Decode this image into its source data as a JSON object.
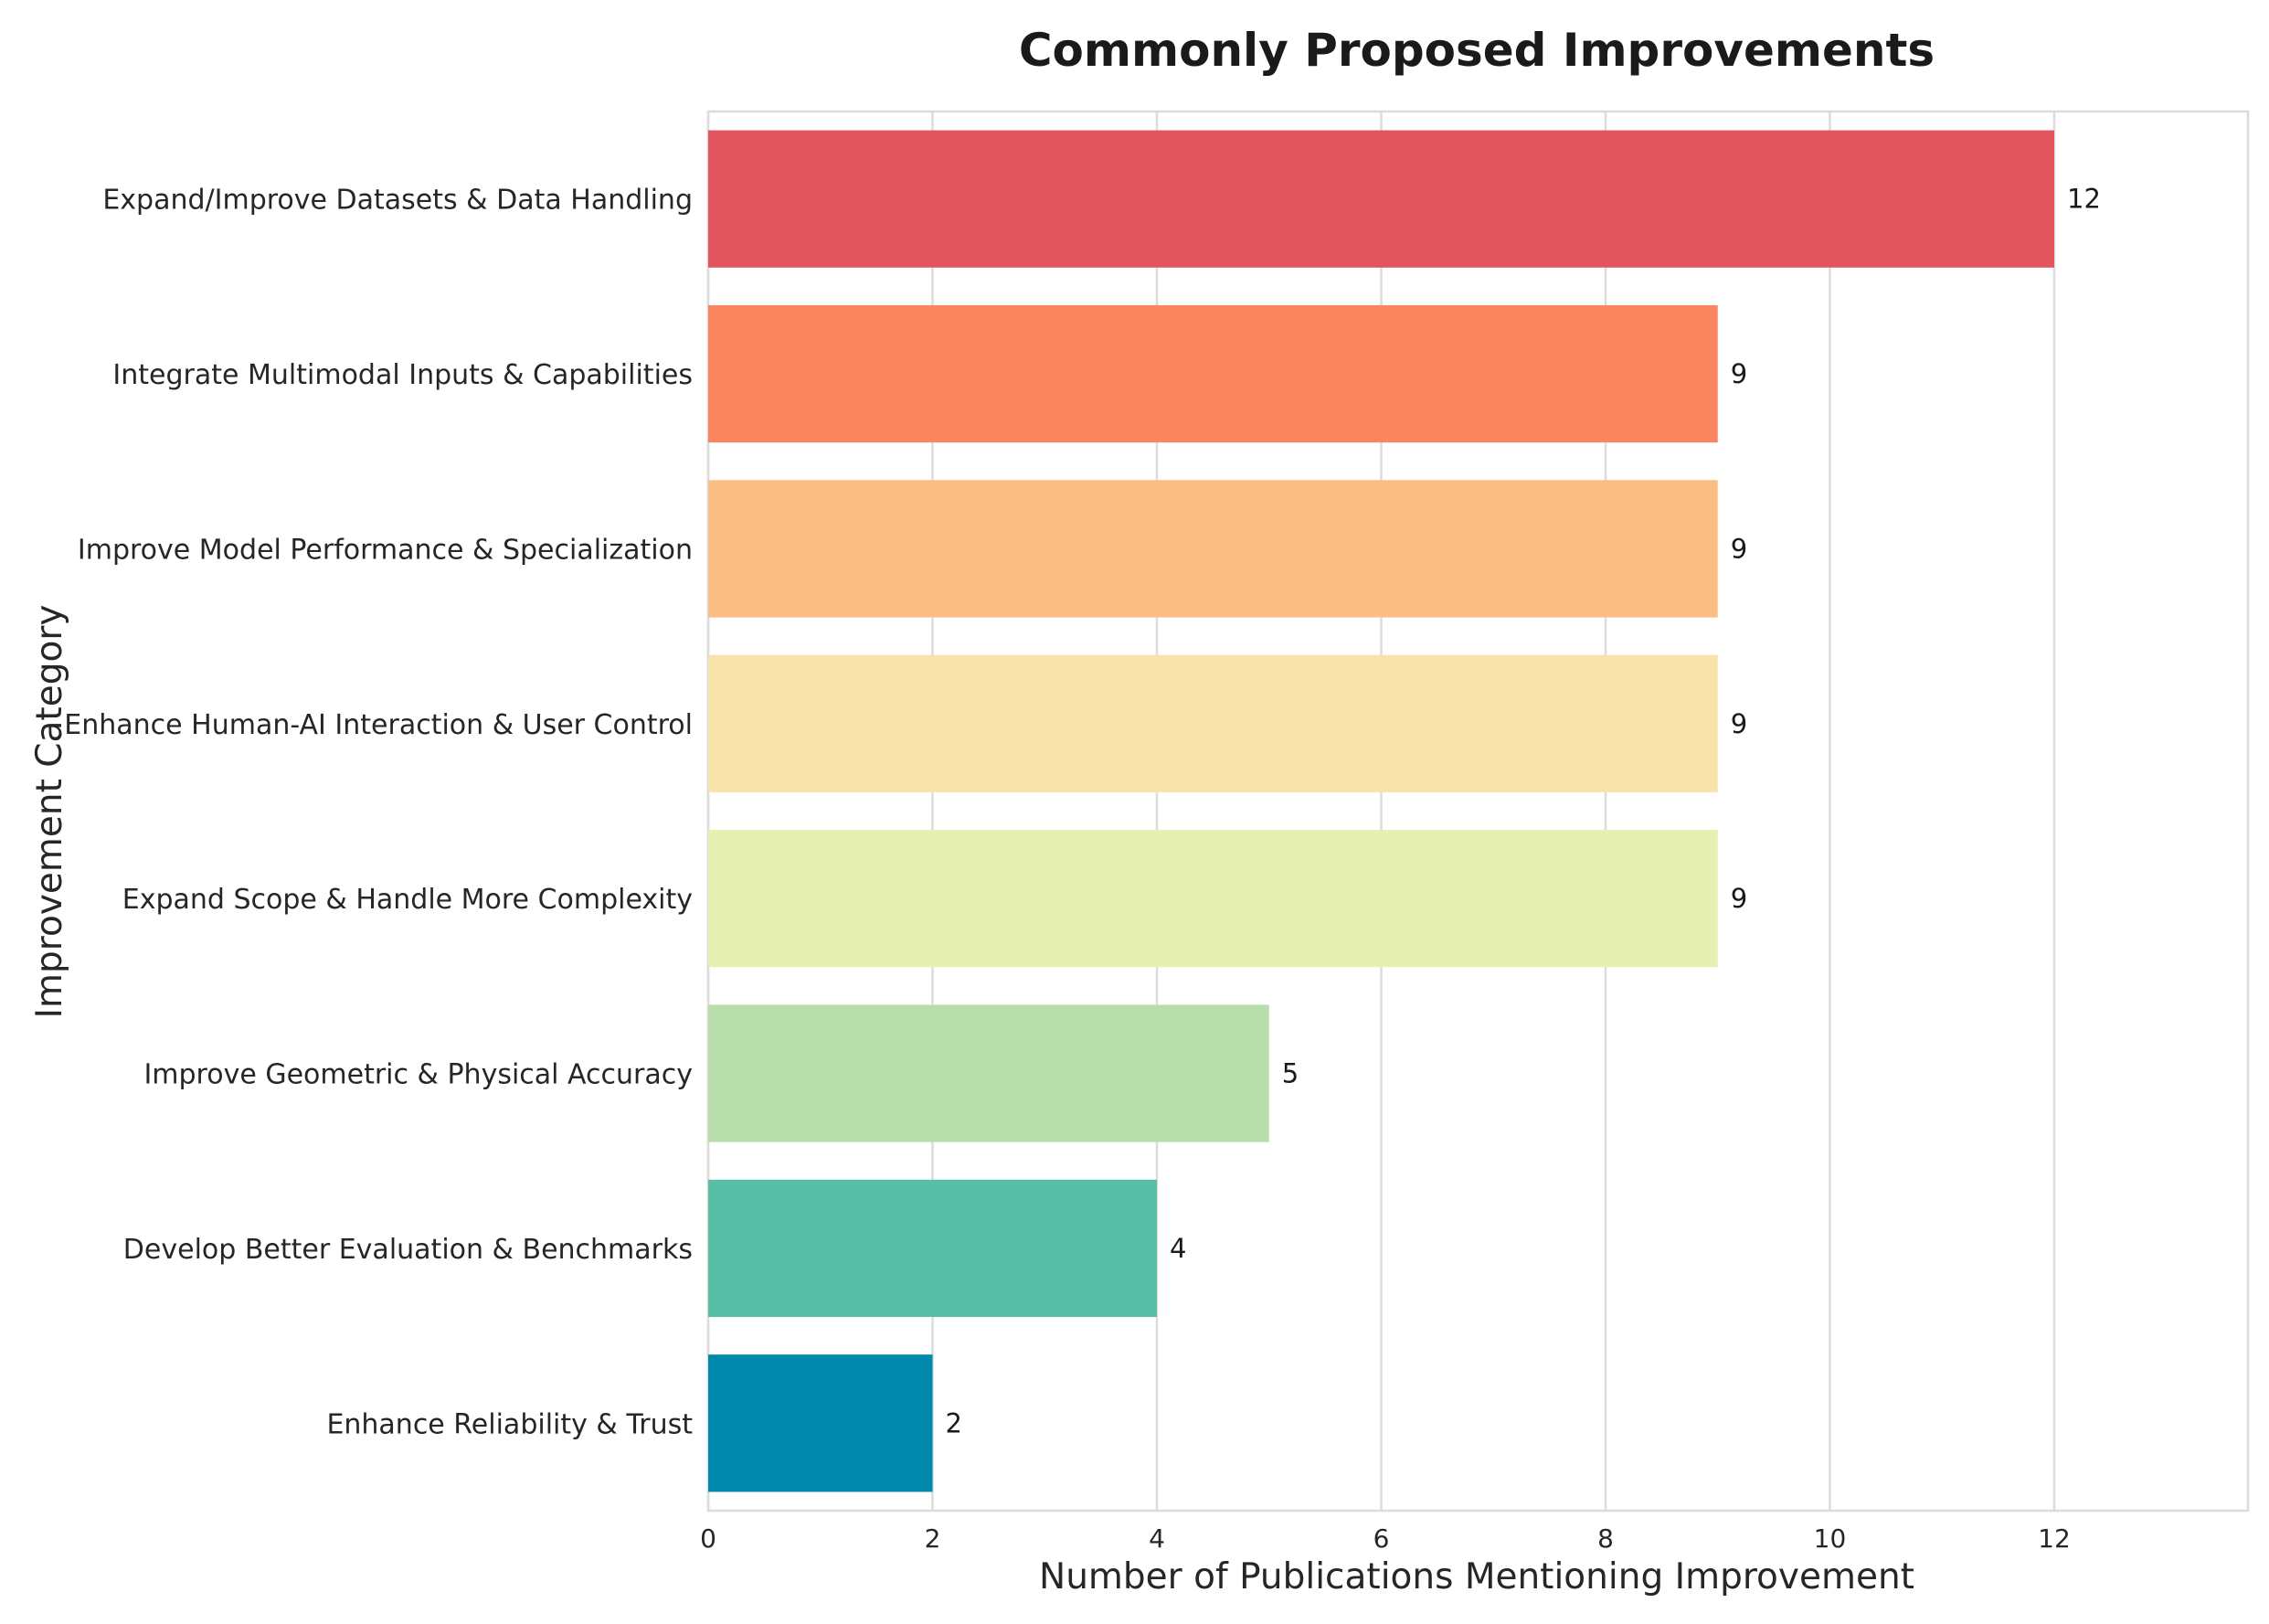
{
  "chart_data": {
    "type": "bar",
    "orientation": "horizontal",
    "title": "Commonly Proposed Improvements",
    "xlabel": "Number of Publications Mentioning Improvement",
    "ylabel": "Improvement Category",
    "xlim": [
      0,
      13.8
    ],
    "xticks": [
      0,
      2,
      4,
      6,
      8,
      10,
      12
    ],
    "grid": "vertical",
    "categories": [
      "Expand/Improve Datasets & Data Handling",
      "Integrate Multimodal Inputs & Capabilities",
      "Improve Model Performance & Specialization",
      "Enhance Human-AI Interaction & User Control",
      "Expand Scope & Handle More Complexity",
      "Improve Geometric & Physical Accuracy",
      "Develop Better Evaluation & Benchmarks",
      "Enhance Reliability & Trust"
    ],
    "values": [
      12,
      9,
      9,
      9,
      9,
      5,
      4,
      2
    ],
    "data_labels": [
      "12",
      "9",
      "9",
      "9",
      "9",
      "5",
      "4",
      "2"
    ],
    "colors": [
      "#e2555f",
      "#f9865f",
      "#fabe82",
      "#f8e4ab",
      "#e6f0b0",
      "#b6ddaa",
      "#58bea5",
      "#0088ad"
    ]
  }
}
